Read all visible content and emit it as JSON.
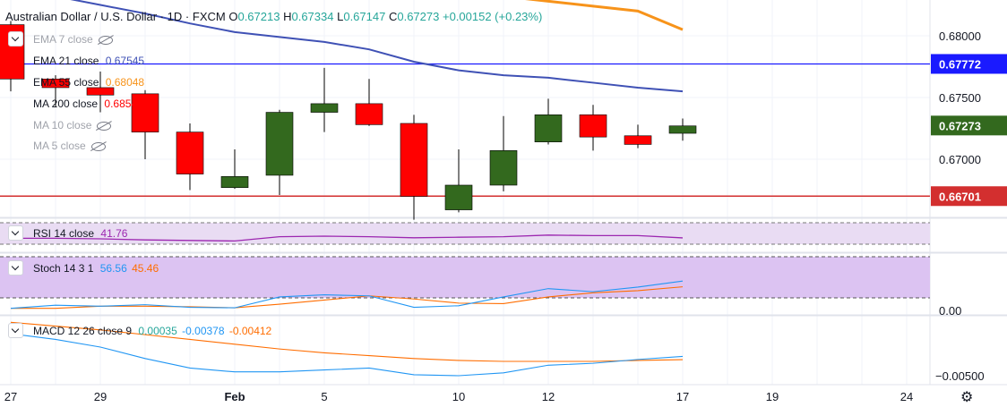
{
  "header": {
    "symbol": "Australian Dollar / U.S. Dollar",
    "interval": "1D",
    "exchange": "FXCM",
    "o_label": "O",
    "o_value": "0.67213",
    "h_label": "H",
    "h_value": "0.67334",
    "l_label": "L",
    "l_value": "0.67147",
    "c_label": "C",
    "c_value": "0.67273",
    "change": "+0.00152 (+0.23%)"
  },
  "legend": {
    "ema7": "EMA 7 close",
    "ema21": "EMA 21 close",
    "ema21_value": "0.67545",
    "ema55": "EMA 55 close",
    "ema55_value": "0.68048",
    "ma200": "MA 200 close",
    "ma200_value": "0.68543",
    "ma10": "MA 10 close",
    "ma5": "MA 5 close",
    "rsi": "RSI 14 close",
    "rsi_value": "41.76",
    "stoch": "Stoch 14 3 1",
    "stoch_k": "56.56",
    "stoch_d": "45.46",
    "macd": "MACD 12 26 close 9",
    "macd_hist": "0.00035",
    "macd_line": "-0.00378",
    "macd_signal": "-0.00412"
  },
  "colors": {
    "up": "#33691e",
    "down": "#ff0000",
    "ema21": "#3f51b5",
    "ema55": "#f7931a",
    "hline_blue": "#1a1aff",
    "hline_red": "#d32f2f",
    "rsi": "#9c27b0",
    "stoch_k": "#2196f3",
    "stoch_d": "#ff6d00",
    "macd": "#2196f3",
    "signal": "#ff6d00"
  },
  "chart_data": {
    "type": "candlestick",
    "x_tick_labels": [
      "27",
      "29",
      "Feb",
      "5",
      "10",
      "12",
      "17",
      "19",
      "24"
    ],
    "y_tick_labels": [
      "0.68000",
      "0.67500",
      "0.67000"
    ],
    "price_labels": {
      "blue_line": "0.67772",
      "last": "0.67273",
      "red_line": "0.66701"
    },
    "horizontal_lines": {
      "blue": 0.67772,
      "red": 0.66701
    },
    "candles": [
      {
        "date": "Jan 27",
        "o": 0.6809,
        "h": 0.6812,
        "l": 0.6755,
        "c": 0.6765
      },
      {
        "date": "Jan 28",
        "o": 0.6765,
        "h": 0.6768,
        "l": 0.6742,
        "c": 0.6758
      },
      {
        "date": "Jan 29",
        "o": 0.6758,
        "h": 0.6771,
        "l": 0.6738,
        "c": 0.6752
      },
      {
        "date": "Jan 30",
        "o": 0.6753,
        "h": 0.6756,
        "l": 0.67,
        "c": 0.6722
      },
      {
        "date": "Jan 31",
        "o": 0.6722,
        "h": 0.6729,
        "l": 0.6675,
        "c": 0.6688
      },
      {
        "date": "Feb 3",
        "o": 0.6677,
        "h": 0.6708,
        "l": 0.6676,
        "c": 0.6686
      },
      {
        "date": "Feb 4",
        "o": 0.6687,
        "h": 0.674,
        "l": 0.6671,
        "c": 0.6738
      },
      {
        "date": "Feb 5",
        "o": 0.6738,
        "h": 0.6774,
        "l": 0.6722,
        "c": 0.6745
      },
      {
        "date": "Feb 6",
        "o": 0.6745,
        "h": 0.6765,
        "l": 0.6727,
        "c": 0.6728
      },
      {
        "date": "Feb 7",
        "o": 0.6729,
        "h": 0.6736,
        "l": 0.6651,
        "c": 0.667
      },
      {
        "date": "Feb 10",
        "o": 0.6659,
        "h": 0.6708,
        "l": 0.6657,
        "c": 0.6679
      },
      {
        "date": "Feb 11",
        "o": 0.6679,
        "h": 0.6735,
        "l": 0.6674,
        "c": 0.6707
      },
      {
        "date": "Feb 12",
        "o": 0.6714,
        "h": 0.6749,
        "l": 0.6712,
        "c": 0.6736
      },
      {
        "date": "Feb 13",
        "o": 0.6736,
        "h": 0.6744,
        "l": 0.6707,
        "c": 0.6718
      },
      {
        "date": "Feb 14",
        "o": 0.6719,
        "h": 0.6728,
        "l": 0.6709,
        "c": 0.6712
      },
      {
        "date": "Feb 17",
        "o": 0.6721,
        "h": 0.6733,
        "l": 0.6715,
        "c": 0.6727
      }
    ],
    "ema21": [
      0.6838,
      0.6832,
      0.6825,
      0.6818,
      0.681,
      0.6803,
      0.6799,
      0.6795,
      0.6789,
      0.6779,
      0.6772,
      0.6768,
      0.6766,
      0.6762,
      0.6758,
      0.6755
    ],
    "ema55": [
      0.6868,
      0.6865,
      0.6862,
      0.6859,
      0.6856,
      0.6853,
      0.685,
      0.6847,
      0.6844,
      0.684,
      0.6836,
      0.6832,
      0.6828,
      0.6824,
      0.682,
      0.6805
    ],
    "rsi": [
      41,
      41,
      40,
      38,
      37,
      36,
      44,
      45,
      44,
      42,
      43,
      44,
      47,
      46,
      46,
      41.76
    ],
    "stoch_k": [
      4,
      10,
      8,
      11,
      6,
      5,
      26,
      30,
      28,
      6,
      9,
      26,
      42,
      36,
      45,
      56.56
    ],
    "stoch_d": [
      4,
      4,
      8,
      8,
      7,
      5,
      12,
      20,
      28,
      22,
      14,
      13,
      26,
      34,
      38,
      45.46
    ],
    "macd_line": [
      -0.0014,
      -0.002,
      -0.0028,
      -0.004,
      -0.005,
      -0.0054,
      -0.0054,
      -0.0052,
      -0.005,
      -0.0057,
      -0.0058,
      -0.0055,
      -0.0047,
      -0.0045,
      -0.0041,
      -0.00378
    ],
    "macd_signal": [
      -0.0002,
      -0.0006,
      -0.001,
      -0.0015,
      -0.002,
      -0.0025,
      -0.003,
      -0.0034,
      -0.0037,
      -0.004,
      -0.0042,
      -0.0043,
      -0.0043,
      -0.0043,
      -0.0042,
      -0.00412
    ],
    "stoch_ticks": [
      "0.00"
    ],
    "macd_ticks": [
      "−0.00500"
    ]
  }
}
